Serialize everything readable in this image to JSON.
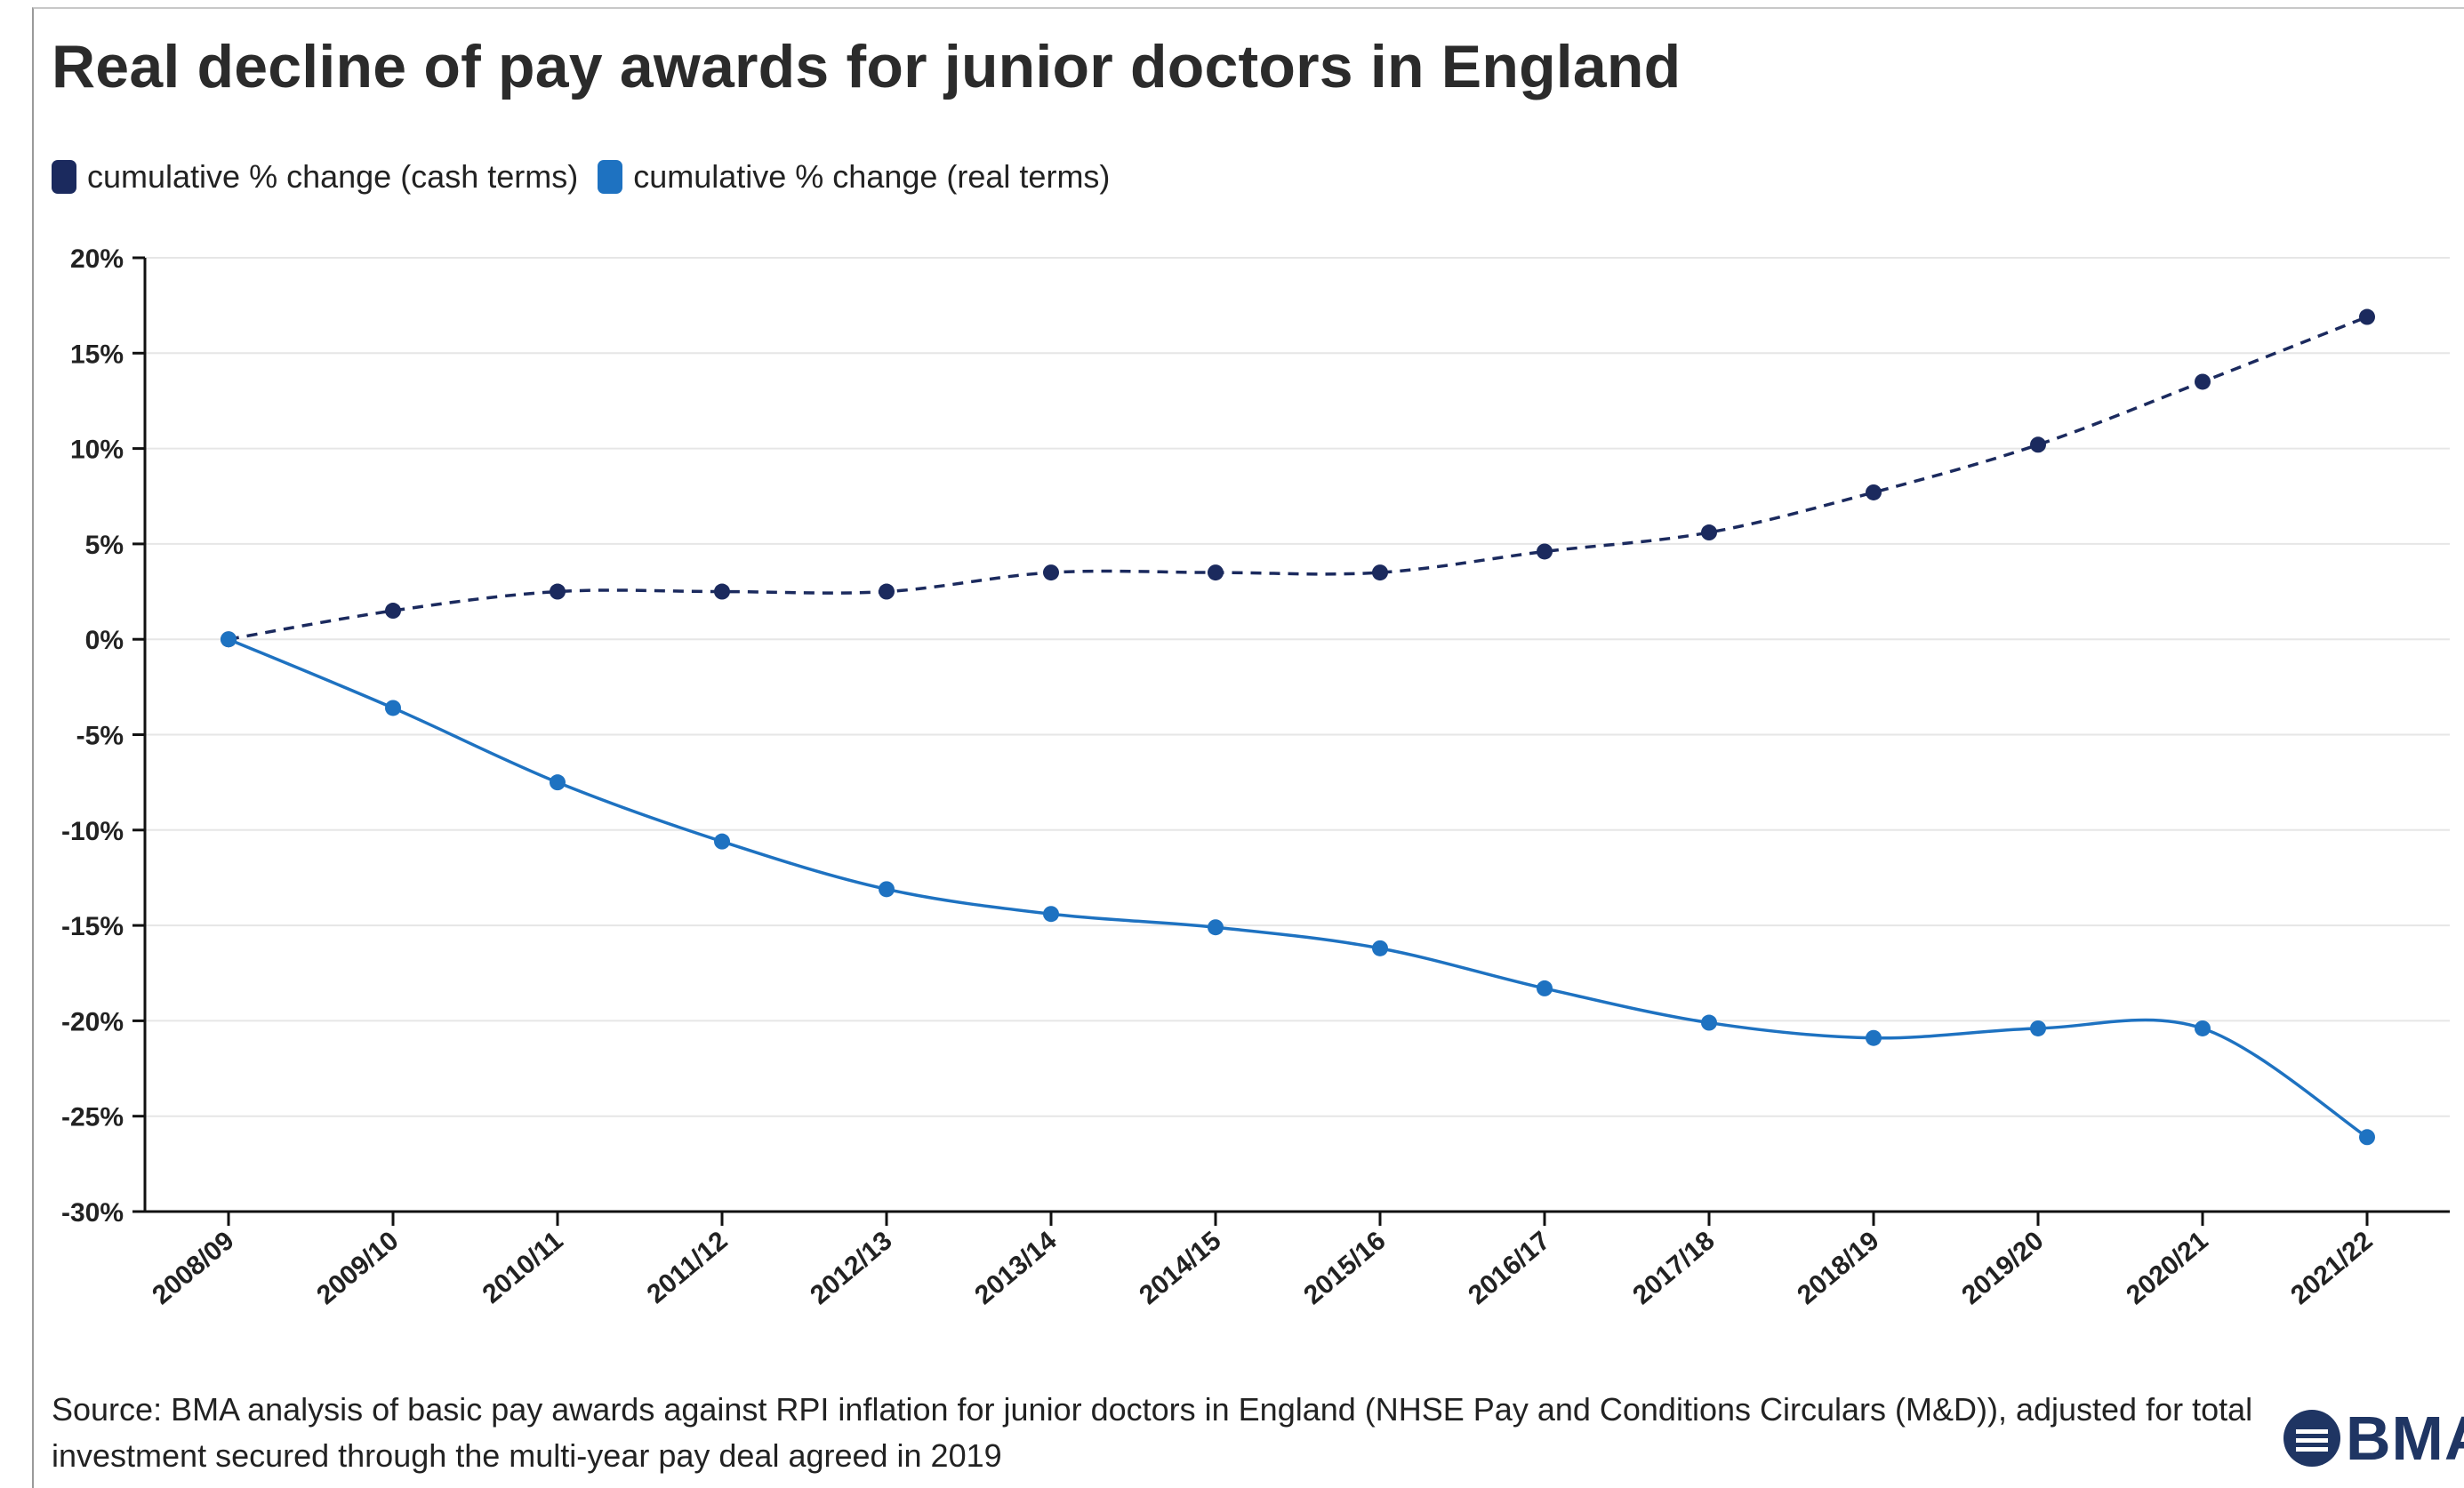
{
  "chart_data": {
    "type": "line",
    "title": "Real decline of pay awards for junior doctors in England",
    "categories": [
      "2008/09",
      "2009/10",
      "2010/11",
      "2011/12",
      "2012/13",
      "2013/14",
      "2014/15",
      "2015/16",
      "2016/17",
      "2017/18",
      "2018/19",
      "2019/20",
      "2020/21",
      "2021/22"
    ],
    "series": [
      {
        "name": "cumulative % change (cash terms)",
        "color": "#1b2a5e",
        "style": "dashed",
        "values": [
          0,
          1.5,
          2.5,
          2.5,
          2.5,
          3.5,
          3.5,
          3.5,
          4.6,
          5.6,
          7.7,
          10.2,
          13.5,
          16.9
        ]
      },
      {
        "name": "cumulative % change (real terms)",
        "color": "#1e72c1",
        "style": "solid",
        "values": [
          0,
          -3.6,
          -7.5,
          -10.6,
          -13.1,
          -14.4,
          -15.1,
          -16.2,
          -18.3,
          -20.1,
          -20.9,
          -20.4,
          -20.4,
          -26.1
        ]
      }
    ],
    "yticks": [
      "20%",
      "15%",
      "10%",
      "5%",
      "0%",
      "-5%",
      "-10%",
      "-15%",
      "-20%",
      "-25%",
      "-30%"
    ],
    "ylim": [
      -30,
      20
    ],
    "grid": true,
    "legend_position": "top-left"
  },
  "source": "Source: BMA analysis of basic pay awards against RPI inflation for junior doctors in England (NHSE Pay and Conditions Circulars (M&D)), adjusted for total investment secured through the multi-year pay deal agreed in 2019",
  "logo_text": "BMA"
}
